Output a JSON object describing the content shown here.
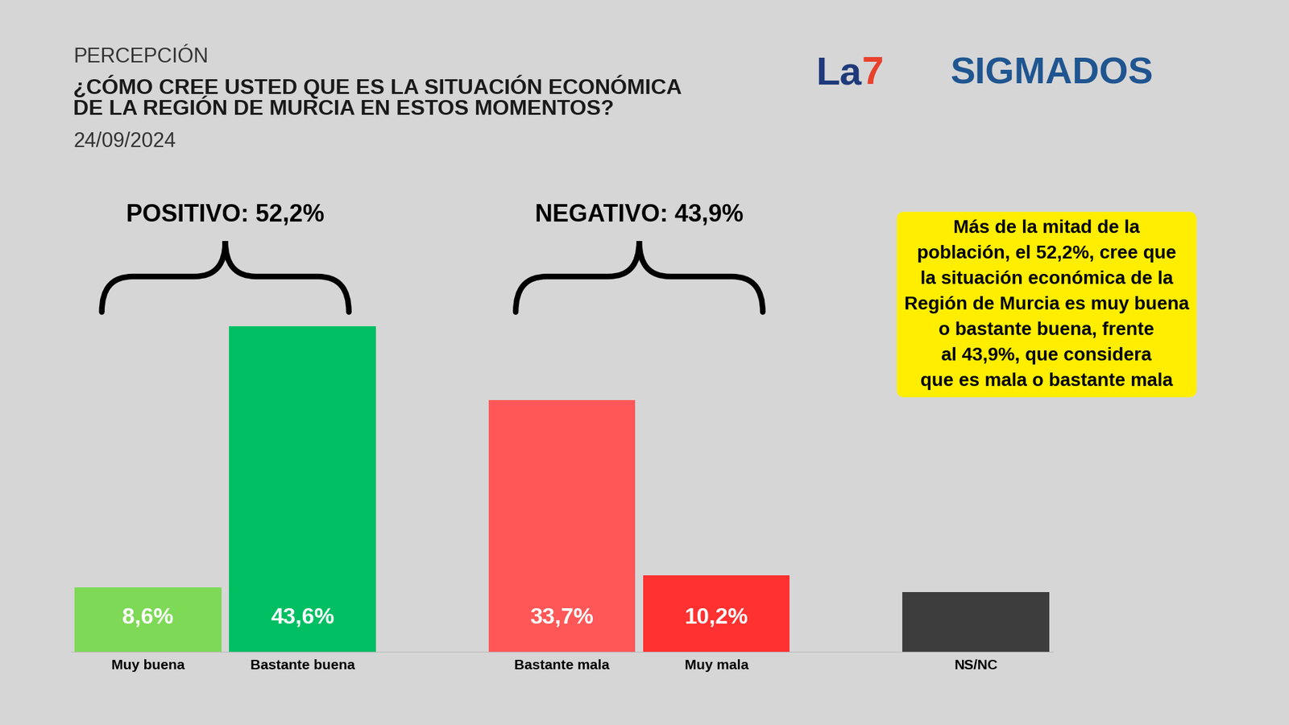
{
  "chart_data": {
    "type": "bar",
    "header": "PERCEPCIÓN",
    "title": "¿CÓMO CREE USTED QUE ES LA SITUACIÓN ECONÓMICA\nDE LA REGIÓN DE MURCIA EN ESTOS MOMENTOS?",
    "date": "24/09/2024",
    "logos": [
      "La7",
      "SIGMADOS"
    ],
    "categories": [
      "Muy buena",
      "Bastante buena",
      "Bastante mala",
      "Muy mala",
      "NS/NC"
    ],
    "values": [
      8.6,
      43.6,
      33.7,
      10.2,
      8.0
    ],
    "value_labels": [
      "8,6%",
      "43,6%",
      "33,7%",
      "10,2%",
      null
    ],
    "colors": [
      "#7ed957",
      "#00bf63",
      "#ff5757",
      "#ff3131",
      "#3d3d3d"
    ],
    "groups": [
      {
        "label": "POSITIVO: 52,2%",
        "categories": [
          "Muy buena",
          "Bastante buena"
        ]
      },
      {
        "label": "NEGATIVO: 43,9%",
        "categories": [
          "Bastante mala",
          "Muy mala"
        ]
      }
    ],
    "annotation": "Más de la mitad de la\npoblación, el 52,2%, cree que\nla situación económica de la\nRegión de Murcia es muy buena\no bastante buena, frente\nal 43,9%, que considera\nque es mala o bastante mala",
    "ylim": [
      0,
      50
    ],
    "data_labels": true,
    "tick_labels": "x",
    "grid": false
  }
}
